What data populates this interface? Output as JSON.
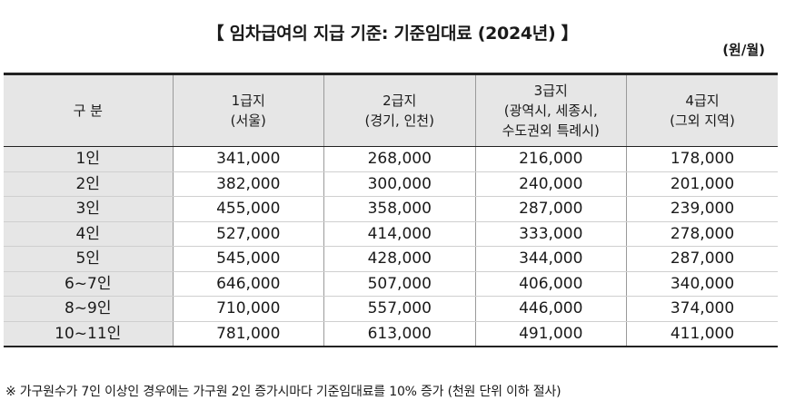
{
  "title": "【 임차급여의 지급 기준: 기준임대료 (2024년) 】",
  "unit": "(원/월)",
  "table": {
    "headers": [
      {
        "lines": [
          "구  분"
        ]
      },
      {
        "lines": [
          "1급지",
          "(서울)"
        ]
      },
      {
        "lines": [
          "2급지",
          "(경기, 인천)"
        ]
      },
      {
        "lines": [
          "3급지",
          "(광역시, 세종시,",
          "수도권외 특례시)"
        ]
      },
      {
        "lines": [
          "4급지",
          "(그외 지역)"
        ]
      }
    ],
    "rows": [
      {
        "label": "1인",
        "values": [
          "341,000",
          "268,000",
          "216,000",
          "178,000"
        ]
      },
      {
        "label": "2인",
        "values": [
          "382,000",
          "300,000",
          "240,000",
          "201,000"
        ]
      },
      {
        "label": "3인",
        "values": [
          "455,000",
          "358,000",
          "287,000",
          "239,000"
        ]
      },
      {
        "label": "4인",
        "values": [
          "527,000",
          "414,000",
          "333,000",
          "278,000"
        ]
      },
      {
        "label": "5인",
        "values": [
          "545,000",
          "428,000",
          "344,000",
          "287,000"
        ]
      },
      {
        "label": "6~7인",
        "values": [
          "646,000",
          "507,000",
          "406,000",
          "340,000"
        ]
      },
      {
        "label": "8~9인",
        "values": [
          "710,000",
          "557,000",
          "446,000",
          "374,000"
        ]
      },
      {
        "label": "10~11인",
        "values": [
          "781,000",
          "613,000",
          "491,000",
          "411,000"
        ]
      }
    ]
  },
  "note": "※ 가구원수가 7인 이상인 경우에는 가구원 2인 증가시마다 기준임대료를 10% 증가 (천원 단위 이하 절사)"
}
